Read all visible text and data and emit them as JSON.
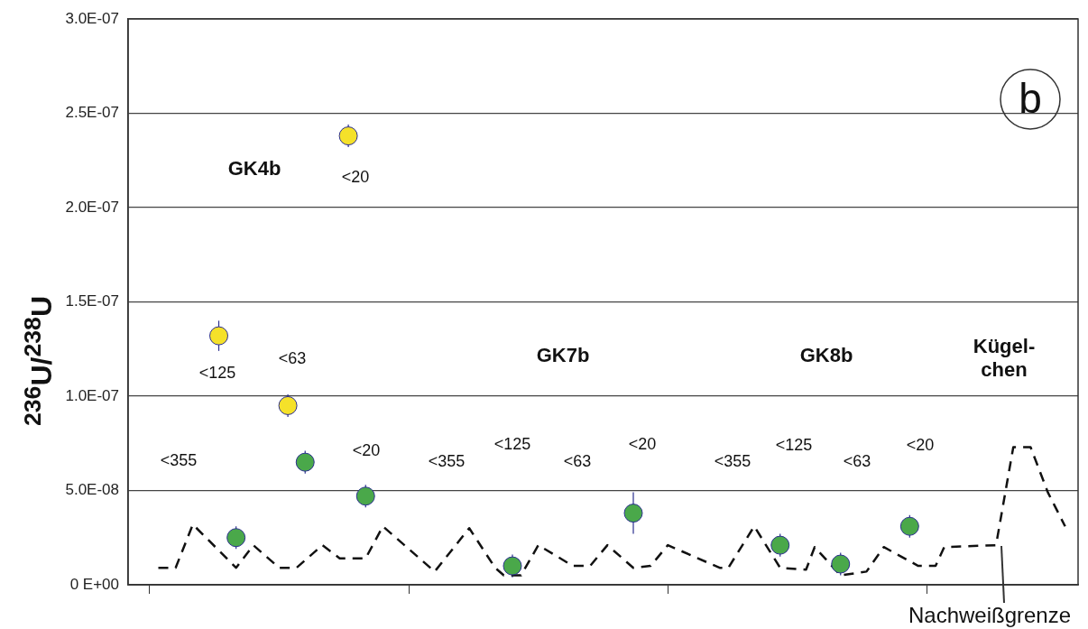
{
  "chart_data": {
    "type": "scatter",
    "ylabel": "$^{236}$U/$^{238}$U",
    "categories": [
      null,
      null,
      null,
      null,
      null,
      null,
      null,
      null,
      null,
      null,
      null,
      null,
      null,
      null,
      null,
      null,
      null,
      null,
      null,
      null,
      null,
      null,
      null,
      null,
      null,
      null,
      null,
      null,
      null,
      null,
      null,
      null,
      null,
      null,
      null,
      null,
      null,
      null,
      null,
      null,
      null,
      null,
      null,
      null,
      null,
      null,
      null,
      null,
      null,
      null,
      null,
      null,
      null,
      null,
      null,
      null,
      null,
      null,
      null,
      null,
      null,
      null,
      null,
      null,
      null,
      null,
      null,
      null,
      null,
      null,
      null,
      null,
      null,
      null,
      null,
      null,
      null,
      null,
      null,
      null,
      null,
      null,
      null,
      null,
      null,
      null,
      null,
      null,
      null,
      null,
      null,
      null,
      null,
      null,
      null,
      null,
      null,
      null,
      null,
      null,
      null,
      null,
      null,
      null,
      null,
      null,
      null,
      null,
      null,
      null
    ],
    "ylim": [
      0,
      3e-07
    ],
    "yticks": [
      {
        "value": 0,
        "label": "0 E+00"
      },
      {
        "value": 5e-08,
        "label": "5.0E-08"
      },
      {
        "value": 1e-07,
        "label": "1.0E-07"
      },
      {
        "value": 1.5e-07,
        "label": "1.5E-07"
      },
      {
        "value": 2e-07,
        "label": "2.0E-07"
      },
      {
        "value": 2.5e-07,
        "label": "2.5E-07"
      },
      {
        "value": 3e-07,
        "label": "3.0E-07"
      }
    ],
    "tick_labels": "y",
    "grid": "y",
    "legend": false,
    "series": [
      {
        "type": "scatter",
        "marker": "circle",
        "color": "#f5e12a",
        "values": [
          null,
          null,
          null,
          null,
          null,
          null,
          null,
          null,
          null,
          null,
          1.32e-07,
          null,
          null,
          null,
          null,
          null,
          null,
          null,
          9.5e-08,
          null,
          null,
          null,
          null,
          null,
          null,
          2.38e-07,
          null,
          null,
          null,
          null,
          null,
          null,
          null,
          null,
          null,
          null,
          null,
          null,
          null,
          null,
          null,
          null,
          null,
          null,
          null,
          null,
          null,
          null,
          null,
          null,
          null,
          null,
          null,
          null,
          null,
          null,
          null,
          null,
          null,
          null,
          null,
          null,
          null,
          null,
          null,
          null,
          null,
          null,
          null,
          null,
          null,
          null,
          null,
          null,
          null,
          null,
          null,
          null,
          null,
          null,
          null,
          null,
          null,
          null,
          null,
          null,
          null,
          null,
          null,
          null,
          null,
          null,
          null,
          null,
          null,
          null,
          null,
          null,
          null,
          null,
          null,
          null,
          null,
          null,
          null,
          null,
          null,
          null,
          null,
          null
        ],
        "errors": [
          null,
          null,
          null,
          null,
          null,
          null,
          null,
          null,
          null,
          null,
          8e-09,
          null,
          null,
          null,
          null,
          null,
          null,
          null,
          6e-09,
          null,
          null,
          null,
          null,
          null,
          null,
          6e-09,
          null,
          null,
          null,
          null,
          null,
          null,
          null,
          null,
          null,
          null,
          null,
          null,
          null,
          null,
          null,
          null,
          null,
          null,
          null,
          null,
          null,
          null,
          null,
          null,
          null,
          null,
          null,
          null,
          null,
          null,
          null,
          null,
          null,
          null,
          null,
          null,
          null,
          null,
          null,
          null,
          null,
          null,
          null,
          null,
          null,
          null,
          null,
          null,
          null,
          null,
          null,
          null,
          null,
          null,
          null,
          null,
          null,
          null,
          null,
          null,
          null,
          null,
          null,
          null,
          null,
          null,
          null,
          null,
          null,
          null,
          null,
          null,
          null,
          null,
          null,
          null,
          null,
          null,
          null,
          null,
          null,
          null,
          null,
          null
        ]
      },
      {
        "type": "scatter",
        "marker": "circle",
        "color": "#4aa84a",
        "values": [
          null,
          null,
          null,
          null,
          null,
          null,
          null,
          null,
          null,
          null,
          null,
          null,
          2.5e-08,
          null,
          null,
          null,
          null,
          null,
          null,
          null,
          6.5e-08,
          null,
          null,
          null,
          null,
          null,
          null,
          4.7e-08,
          null,
          null,
          null,
          null,
          null,
          null,
          null,
          null,
          null,
          null,
          null,
          null,
          null,
          null,
          null,
          null,
          1e-08,
          null,
          null,
          null,
          null,
          null,
          null,
          null,
          null,
          null,
          null,
          null,
          null,
          null,
          3.8e-08,
          null,
          null,
          null,
          null,
          null,
          null,
          null,
          null,
          null,
          null,
          null,
          null,
          null,
          null,
          null,
          null,
          2.1e-08,
          null,
          null,
          null,
          null,
          null,
          null,
          1.1e-08,
          null,
          null,
          null,
          null,
          null,
          null,
          null,
          3.1e-08,
          null,
          null,
          null,
          null,
          null,
          null,
          null,
          null,
          null,
          null,
          null,
          null,
          null,
          null,
          null,
          null,
          null,
          null,
          null
        ],
        "errors": [
          null,
          null,
          null,
          null,
          null,
          null,
          null,
          null,
          null,
          null,
          null,
          null,
          6e-09,
          null,
          null,
          null,
          null,
          null,
          null,
          null,
          6e-09,
          null,
          null,
          null,
          null,
          null,
          null,
          6e-09,
          null,
          null,
          null,
          null,
          null,
          null,
          null,
          null,
          null,
          null,
          null,
          null,
          null,
          null,
          null,
          null,
          6e-09,
          null,
          null,
          null,
          null,
          null,
          null,
          null,
          null,
          null,
          null,
          null,
          null,
          null,
          1.1e-08,
          null,
          null,
          null,
          null,
          null,
          null,
          null,
          null,
          null,
          null,
          null,
          null,
          null,
          null,
          null,
          null,
          6e-09,
          null,
          null,
          null,
          null,
          null,
          null,
          6e-09,
          null,
          null,
          null,
          null,
          null,
          null,
          null,
          6e-09,
          null,
          null,
          null,
          null,
          null,
          null,
          null,
          null,
          null,
          null,
          null,
          null,
          null,
          null,
          null,
          null,
          null,
          null,
          null
        ]
      },
      {
        "type": "line",
        "marker": "none",
        "line_style": "dashed",
        "color": "#111111",
        "values": [
          null,
          null,
          null,
          9e-09,
          null,
          9e-09,
          null,
          3.2e-08,
          null,
          null,
          null,
          null,
          9e-09,
          null,
          2.1e-08,
          null,
          null,
          9e-09,
          null,
          9e-09,
          null,
          null,
          2.1e-08,
          null,
          1.4e-08,
          null,
          null,
          1.4e-08,
          null,
          3.1e-08,
          null,
          null,
          null,
          null,
          null,
          7e-09,
          null,
          null,
          null,
          3e-08,
          null,
          null,
          9e-09,
          5e-09,
          null,
          5e-09,
          null,
          2.1e-08,
          null,
          null,
          null,
          1e-08,
          null,
          1e-08,
          null,
          2.1e-08,
          null,
          null,
          9e-09,
          null,
          1e-08,
          null,
          2.1e-08,
          null,
          null,
          null,
          null,
          null,
          9e-09,
          9e-09,
          null,
          null,
          3.1e-08,
          null,
          null,
          9e-09,
          null,
          null,
          8e-09,
          2e-08,
          null,
          null,
          5e-09,
          null,
          null,
          7e-09,
          null,
          2e-08,
          null,
          null,
          null,
          1e-08,
          null,
          1e-08,
          2e-08,
          null,
          null,
          null,
          null,
          null,
          2.1e-08,
          null,
          7.3e-08,
          null,
          7.3e-08,
          null,
          4.9e-08,
          null,
          3.1e-08,
          null
        ]
      }
    ],
    "annotations": [
      "GK4b",
      "GK7b",
      "GK8b",
      "Kügel-\nchen",
      "Nachweißgrenze",
      "<355",
      "<20",
      "<125",
      "<63",
      "<20",
      "<355",
      "<125",
      "<63",
      "<20",
      "<355",
      "<125",
      "<63",
      "<20",
      "b"
    ]
  }
}
